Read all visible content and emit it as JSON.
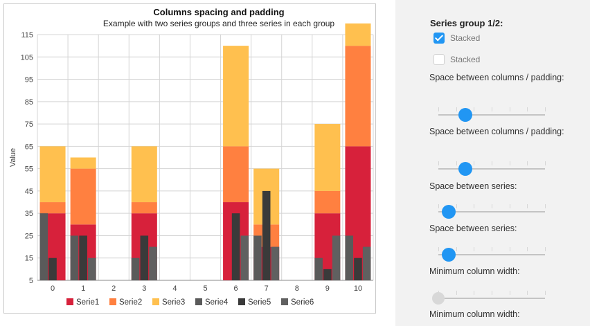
{
  "chart_data": {
    "type": "bar",
    "title": "Columns spacing and padding",
    "subtitle": "Example with two series groups and three series in each group",
    "xlabel": "",
    "ylabel": "Value",
    "ylim": [
      5,
      115
    ],
    "yticks": [
      5,
      15,
      25,
      35,
      45,
      55,
      65,
      75,
      85,
      95,
      105,
      115
    ],
    "categories": [
      "0",
      "1",
      "2",
      "3",
      "4",
      "5",
      "6",
      "7",
      "8",
      "9",
      "10"
    ],
    "grid": true,
    "legend_position": "bottom",
    "groups": [
      {
        "name": "Series group 1",
        "stacked": true,
        "series": [
          {
            "name": "Serie1",
            "color": "#d7213b",
            "values": [
              30,
              25,
              0,
              30,
              0,
              0,
              35,
              15,
              0,
              30,
              60
            ]
          },
          {
            "name": "Serie2",
            "color": "#ff8040",
            "values": [
              5,
              25,
              0,
              5,
              0,
              0,
              25,
              10,
              0,
              10,
              45
            ]
          },
          {
            "name": "Serie3",
            "color": "#ffc04f",
            "values": [
              25,
              5,
              0,
              25,
              0,
              0,
              45,
              25,
              0,
              30,
              10
            ]
          }
        ]
      },
      {
        "name": "Series group 2",
        "stacked": false,
        "series": [
          {
            "name": "Serie4",
            "color": "#5a5a5a",
            "values": [
              30,
              20,
              0,
              10,
              0,
              0,
              0,
              20,
              0,
              10,
              20
            ]
          },
          {
            "name": "Serie5",
            "color": "#3a3a3a",
            "values": [
              10,
              20,
              0,
              20,
              0,
              0,
              30,
              40,
              0,
              5,
              10
            ]
          },
          {
            "name": "Serie6",
            "color": "#606060",
            "values": [
              0,
              10,
              0,
              15,
              0,
              0,
              20,
              15,
              0,
              20,
              15
            ]
          }
        ]
      }
    ]
  },
  "panel": {
    "group_title": "Series group 1/2:",
    "checkbox1_label": "Stacked",
    "checkbox2_label": "Stacked",
    "slider1_label": "Space between columns / padding:",
    "slider2_label": "Space between columns / padding:",
    "slider3_label": "Space between series:",
    "slider4_label": "Space between series:",
    "slider5_label": "Minimum column width:",
    "slider6_label": "Minimum column width:",
    "slider1_value": 0.25,
    "slider2_value": 0.25,
    "slider3_value": 0.1,
    "slider4_value": 0.1,
    "slider5_value": 0.0
  }
}
